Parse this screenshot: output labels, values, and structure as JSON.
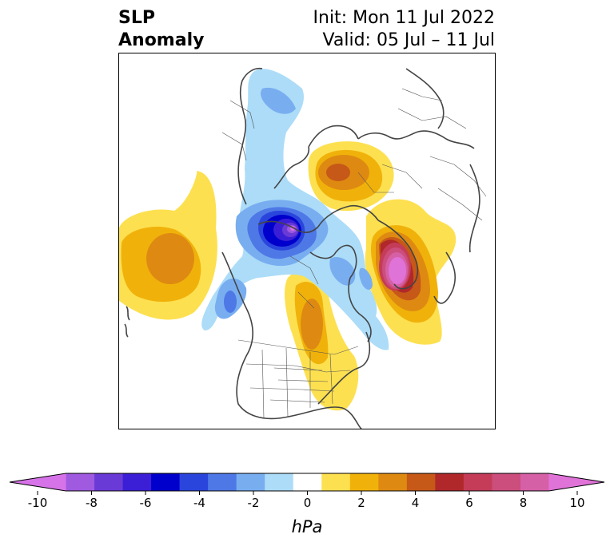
{
  "title": {
    "left_line1": "SLP",
    "left_line2": "Anomaly",
    "right_line1": "Init: Mon 11 Jul 2022",
    "right_line2": "Valid: 05 Jul – 11 Jul"
  },
  "colorbar": {
    "unit_label": "hPa",
    "tick_labels": [
      "-10",
      "-8",
      "-6",
      "-4",
      "-2",
      "0",
      "2",
      "4",
      "6",
      "8",
      "10"
    ],
    "colors": [
      "#d773e8",
      "#9f5ae0",
      "#6a3ad6",
      "#3b1fd6",
      "#0000cc",
      "#2a45dc",
      "#4e78e6",
      "#78aef0",
      "#acdcf8",
      "#ffffff",
      "#fde050",
      "#f0b20a",
      "#de8a12",
      "#c65818",
      "#b0282a",
      "#c43c58",
      "#cc4e7c",
      "#d660a6",
      "#e073d8"
    ]
  },
  "map": {
    "projection": "polar stereographic (north)",
    "field": "sea level pressure anomaly",
    "centers": [
      {
        "region": "Barents / Kara Sea",
        "sign": "high"
      },
      {
        "region": "Canadian Arctic",
        "sign": "low",
        "peak_hpa": -8
      },
      {
        "region": "Central Canada",
        "sign": "high"
      },
      {
        "region": "North Pacific",
        "sign": "high"
      },
      {
        "region": "North Atlantic / Western Europe",
        "sign": "high",
        "peak_hpa": 9
      }
    ]
  }
}
